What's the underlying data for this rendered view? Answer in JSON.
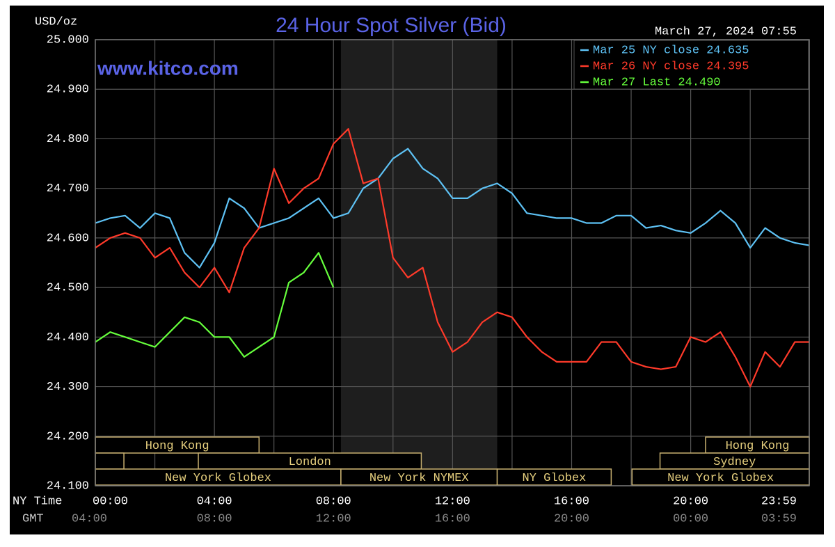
{
  "chart_data": {
    "type": "line",
    "title": "24 Hour Spot Silver (Bid)",
    "y_label": "USD/oz",
    "date": "March 27, 2024 07:55",
    "watermark": "www.kitco.com",
    "x_label": "NY Time",
    "x2_label": "GMT",
    "x": [
      0,
      0.5,
      1,
      1.5,
      2,
      2.5,
      3,
      3.5,
      4,
      4.5,
      5,
      5.5,
      6,
      6.5,
      7,
      7.5,
      8,
      8.5,
      9,
      9.5,
      10,
      10.5,
      11,
      11.5,
      12,
      12.5,
      13,
      13.5,
      14,
      14.5,
      15,
      15.5,
      16,
      16.5,
      17,
      17.5,
      18,
      18.5,
      19,
      19.5,
      20,
      20.5,
      21,
      21.5,
      22,
      22.5,
      23,
      23.5,
      23.98
    ],
    "series": [
      {
        "name": "Mar 25 NY close 24.635",
        "color": "#5ec2f5",
        "values": [
          24.63,
          24.64,
          24.645,
          24.62,
          24.65,
          24.64,
          24.57,
          24.54,
          24.59,
          24.68,
          24.66,
          24.62,
          24.63,
          24.64,
          24.66,
          24.68,
          24.64,
          24.65,
          24.7,
          24.72,
          24.76,
          24.78,
          24.74,
          24.72,
          24.68,
          24.68,
          24.7,
          24.71,
          24.69,
          24.65,
          24.645,
          24.64,
          24.64,
          24.63,
          24.63,
          24.645,
          24.645,
          24.62,
          24.625,
          24.615,
          24.61,
          24.63,
          24.655,
          24.63,
          24.58,
          24.62,
          24.6,
          24.59,
          24.585
        ]
      },
      {
        "name": "Mar 26 NY close 24.395",
        "color": "#ff3a2a",
        "values": [
          24.58,
          24.6,
          24.61,
          24.6,
          24.56,
          24.58,
          24.53,
          24.5,
          24.54,
          24.49,
          24.58,
          24.62,
          24.74,
          24.67,
          24.7,
          24.72,
          24.79,
          24.82,
          24.71,
          24.72,
          24.56,
          24.52,
          24.54,
          24.43,
          24.37,
          24.39,
          24.43,
          24.45,
          24.44,
          24.4,
          24.37,
          24.35,
          24.35,
          24.35,
          24.39,
          24.39,
          24.35,
          24.34,
          24.335,
          24.34,
          24.4,
          24.39,
          24.41,
          24.36,
          24.3,
          24.37,
          24.34,
          24.39,
          24.39
        ]
      },
      {
        "name": "Mar 27 Last 24.490",
        "color": "#66ff3c",
        "values": [
          24.39,
          24.41,
          24.4,
          24.39,
          24.38,
          24.41,
          24.44,
          24.43,
          24.4,
          24.4,
          24.36,
          24.38,
          24.4,
          24.51,
          24.53,
          24.57,
          24.5,
          null,
          null,
          null,
          null,
          null,
          null,
          null,
          null,
          null,
          null,
          null,
          null,
          null,
          null,
          null,
          null,
          null,
          null,
          null,
          null,
          null,
          null,
          null,
          null,
          null,
          null,
          null,
          null,
          null,
          null,
          null,
          null
        ]
      }
    ],
    "xlim": [
      0,
      23.983
    ],
    "xticks": [
      {
        "value": 0,
        "label": "00:00"
      },
      {
        "value": 4,
        "label": "04:00"
      },
      {
        "value": 8,
        "label": "08:00"
      },
      {
        "value": 12,
        "label": "12:00"
      },
      {
        "value": 16,
        "label": "16:00"
      },
      {
        "value": 20,
        "label": "20:00"
      },
      {
        "value": 23.983,
        "label": "23:59"
      }
    ],
    "x2ticks": [
      {
        "value": 0,
        "label": "04:00"
      },
      {
        "value": 4,
        "label": "08:00"
      },
      {
        "value": 8,
        "label": "12:00"
      },
      {
        "value": 12,
        "label": "16:00"
      },
      {
        "value": 16,
        "label": "20:00"
      },
      {
        "value": 20,
        "label": "00:00"
      },
      {
        "value": 23.983,
        "label": "03:59"
      }
    ],
    "x_minor_ticks": [
      2,
      6,
      10,
      14,
      18,
      22
    ],
    "ylim": [
      24.1,
      25.0
    ],
    "yticks": [
      {
        "value": 24.1,
        "label": "24.100"
      },
      {
        "value": 24.2,
        "label": "24.200"
      },
      {
        "value": 24.3,
        "label": "24.300"
      },
      {
        "value": 24.4,
        "label": "24.400"
      },
      {
        "value": 24.5,
        "label": "24.500"
      },
      {
        "value": 24.6,
        "label": "24.600"
      },
      {
        "value": 24.7,
        "label": "24.700"
      },
      {
        "value": 24.8,
        "label": "24.800"
      },
      {
        "value": 24.9,
        "label": "24.900"
      },
      {
        "value": 25.0,
        "label": "25.000"
      }
    ],
    "grid": true,
    "legend": "upper right",
    "sessions": [
      {
        "label": "Hong Kong",
        "row": 0,
        "start": 0,
        "end": 5.5
      },
      {
        "label": "Hong Kong",
        "row": 0,
        "start": 20.5,
        "end": 23.983
      },
      {
        "label": null,
        "row": 1,
        "start": 0,
        "end": 0.96
      },
      {
        "label": "London",
        "row": 1,
        "start": 3.46,
        "end": 10.95
      },
      {
        "label": "Sydney",
        "row": 1,
        "start": 18.97,
        "end": 23.983
      },
      {
        "label": "New York Globex",
        "row": 2,
        "start": 0,
        "end": 8.25
      },
      {
        "label": "New York NYMEX",
        "row": 2,
        "start": 8.25,
        "end": 13.5,
        "shade": true
      },
      {
        "label": "NY Globex",
        "row": 2,
        "start": 13.5,
        "end": 17.33
      },
      {
        "label": "New York Globex",
        "row": 2,
        "start": 18.03,
        "end": 23.983
      }
    ]
  }
}
